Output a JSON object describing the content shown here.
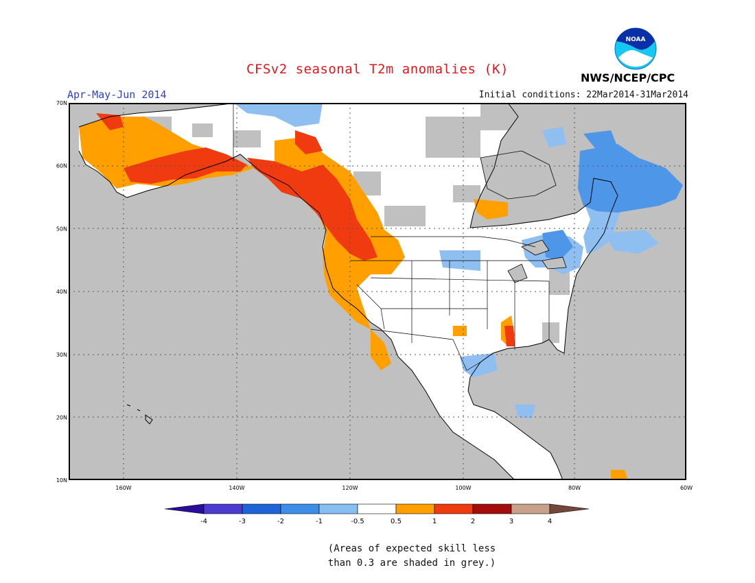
{
  "header": {
    "title": "CFSv2 seasonal T2m anomalies (K)",
    "season": "Apr-May-Jun 2014",
    "initial_conditions": "Initial conditions: 22Mar2014-31Mar2014",
    "agency": "NWS/NCEP/CPC",
    "logo_text": "NOAA"
  },
  "map": {
    "region": "North America",
    "lat_labels": [
      "70N",
      "60N",
      "50N",
      "40N",
      "30N",
      "20N",
      "10N"
    ],
    "lon_labels": [
      "160W",
      "140W",
      "120W",
      "100W",
      "80W",
      "60W"
    ],
    "colors": {
      "ocean_grey": "#c0c0c0",
      "land_white": "#ffffff",
      "orange": "#ffa000",
      "red_orange": "#f03a10",
      "light_blue": "#8fbff0",
      "blue": "#4e96e8"
    }
  },
  "colorbar": {
    "labels": [
      "-4",
      "-3",
      "-2",
      "-1",
      "-0.5",
      "0.5",
      "1",
      "2",
      "3",
      "4"
    ],
    "colors": [
      "#2a0d9c",
      "#4b3bd0",
      "#1e64d8",
      "#3d8ee6",
      "#87bff2",
      "#ffffff",
      "#ffa000",
      "#f03a10",
      "#a50d0d",
      "#c8a08c",
      "#73483a"
    ]
  },
  "footnote": {
    "line1": "(Areas of expected skill less",
    "line2": "than 0.3 are shaded in grey.)"
  }
}
